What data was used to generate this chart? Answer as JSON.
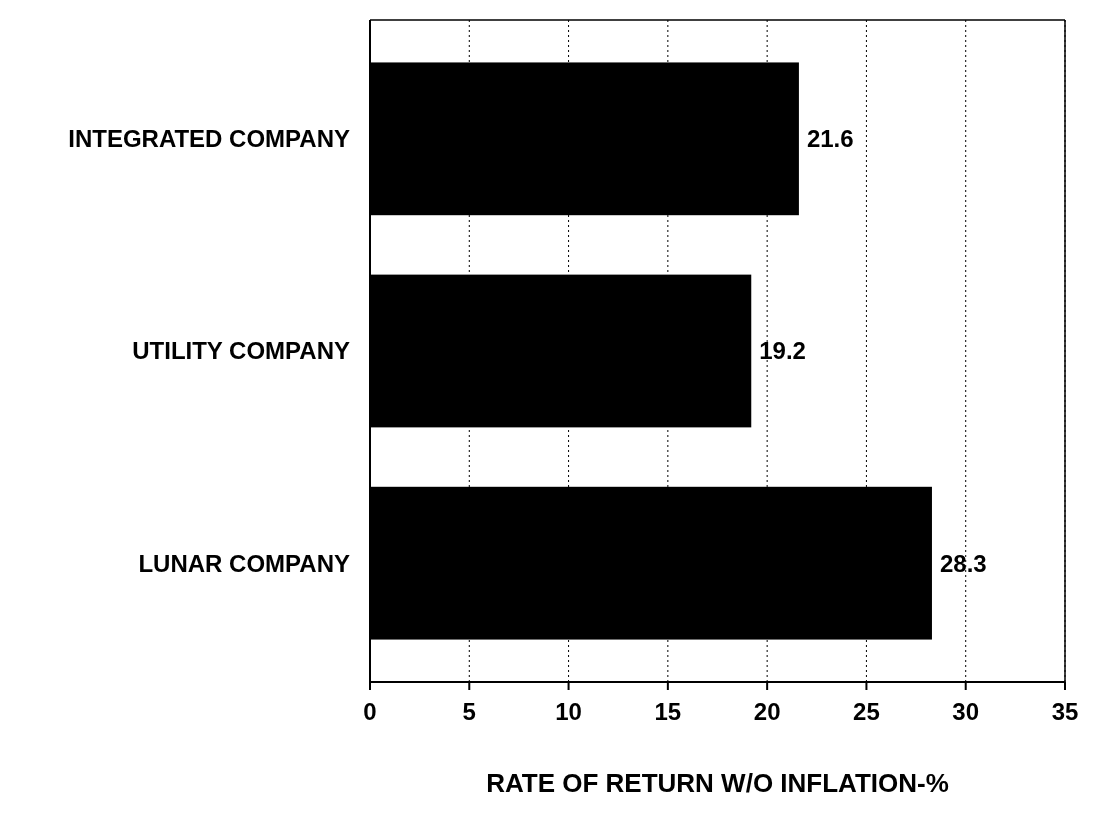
{
  "chart_data": {
    "type": "bar",
    "orientation": "horizontal",
    "xlabel": "RATE OF RETURN W/O INFLATION-%",
    "categories": [
      "INTEGRATED COMPANY",
      "UTILITY COMPANY",
      "LUNAR COMPANY"
    ],
    "values": [
      21.6,
      19.2,
      28.3
    ],
    "color": "#000000",
    "xlim": [
      0,
      35
    ],
    "xticks": [
      0,
      5,
      10,
      15,
      20,
      25,
      30,
      35
    ],
    "grid": "x",
    "data_labels": true
  }
}
